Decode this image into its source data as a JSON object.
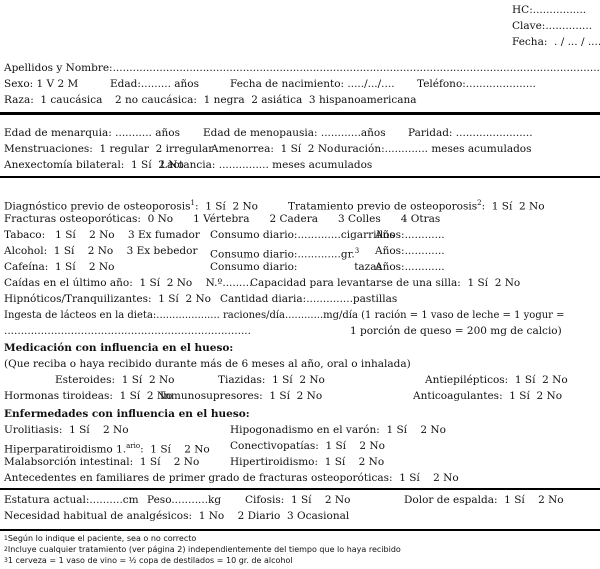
{
  "header": {
    "hc": "HC:................",
    "clave": "Clave:..............",
    "fecha": "Fecha:  . / ... / ...."
  },
  "patient": {
    "nombre": "Apellidos y Nombre:...................................................................................................................................................................",
    "sexo": "Sexo: 1 V 2 M",
    "edad": "Edad:......... años",
    "fecha_nac": "Fecha de nacimiento: ...../.../....",
    "telefono": "Teléfono:.....................",
    "raza": "Raza:  1 caucásica",
    "raza_opts": "2 no caucásica:  1 negra  2 asiática  3 hispanoamericana"
  },
  "gyn": {
    "menarquia": "Edad de menarquia: ........... años",
    "menopausia": "Edad de menopausia: ............años",
    "paridad": "Paridad: .......................",
    "menstruaciones": "Menstruaciones:  1 regular  2 irregular",
    "amenorrea": "Amenorrea:  1 Sí  2 No",
    "duracion": "duración:............. meses acumulados",
    "anexectomia": "Anexectomía bilateral:  1 Sí  2 No",
    "lactancia": "Lactancia: ............... meses acumulados"
  },
  "history": {
    "diagnostico": "Diagnóstico previo de osteoporosis",
    "diagnostico_opts": ":  1 Sí  2 No",
    "tratamiento": "Tratamiento previo de osteoporosis",
    "tratamiento_opts": ":  1 Sí  2 No",
    "fn1": "1",
    "fn2": "2",
    "fn3": "3",
    "fracturas": "Fracturas osteoporóticas:  0 No      1 Vértebra      2 Cadera      3 Colles      4 Otras",
    "tabaco": "Tabaco:   1 Sí    2 No    3 Ex fumador",
    "tabaco_consumo": "Consumo diario:.............cigarrillos",
    "tabaco_anos": "Años:............",
    "alcohol": "Alcohol:  1 Sí    2 No    3 Ex bebedor",
    "alcohol_consumo": "Consumo diario:.............gr.",
    "alcohol_anos": "Años:............",
    "cafeina": "Cafeína:  1 Sí    2 No",
    "cafeina_consumo": "Consumo diario:                 tazas",
    "cafeina_anos": "Años:............",
    "caidas": "Caídas en el último año:  1 Sí  2 No    N.º.........",
    "capacidad": "Capacidad para levantarse de una silla:  1 Sí  2 No",
    "hipnoticos": "Hipnóticos/Tranquilizantes:  1 Sí  2 No",
    "cantidad": "Cantidad diaria:..............pastillas",
    "ingesta": "Ingesta de lácteos en la dieta:.................... raciones/día............mg/día (1 ración = 1 vaso de leche = 1 yogur =",
    "ingesta_dots": "..........................................................................",
    "ingesta_2": "1 porción de queso = 200 mg de calcio)"
  },
  "medication": {
    "title": "Medicación con influencia en el hueso:",
    "subtitle": "(Que reciba o haya recibido durante más de 6 meses al año, oral o inhalada)",
    "esteroides": "Esteroides:  1 Sí  2 No",
    "tiazidas": "Tiazidas:  1 Sí  2 No",
    "antiepilepticos": "Antiepilépticos:  1 Sí  2 No",
    "hormonas": "Hormonas tiroideas:  1 Sí  2 No",
    "inmuno": "Inmunosupresores:  1 Sí  2 No",
    "anticoagulantes": "Anticoagulantes:  1 Sí  2 No"
  },
  "diseases": {
    "title": "Enfermedades con influencia en el hueso:",
    "urolitiasis": "Urolitiasis:  1 Sí    2 No",
    "hipogonadismo": "Hipogonadismo en el varón:  1 Sí    2 No",
    "hiperpara": "Hiperparatiroidismo 1.",
    "hiperpara_sup": "ario",
    "hiperpara_opts": ":  1 Sí    2 No",
    "conectivopatias": "Conectivopatías:  1 Sí    2 No",
    "malabsorcion": "Malabsorción intestinal:  1 Sí    2 No",
    "hipertiroidismo": "Hipertiroidismo:  1 Sí    2 No",
    "antecedentes": "Antecedentes en familiares de primer grado de fracturas osteoporóticas:  1 Sí    2 No"
  },
  "exam": {
    "estatura": "Estatura actual:..........cm",
    "peso": "Peso...........kg",
    "cifosis": "Cifosis:  1 Sí    2 No",
    "dolor": "Dolor de espalda:  1 Sí    2 No",
    "analgesicos": "Necesidad habitual de analgésicos:  1 No    2 Diario  3 Ocasional"
  },
  "footnotes": [
    "Según lo indique el paciente, sea o no correcto",
    "Incluye cualquier tratamiento (ver página 2) independientemente del tiempo que lo haya recibido",
    "1 cerveza = 1 vaso de vino = ½ copa de destilados = 10 gr. de alcohol"
  ]
}
